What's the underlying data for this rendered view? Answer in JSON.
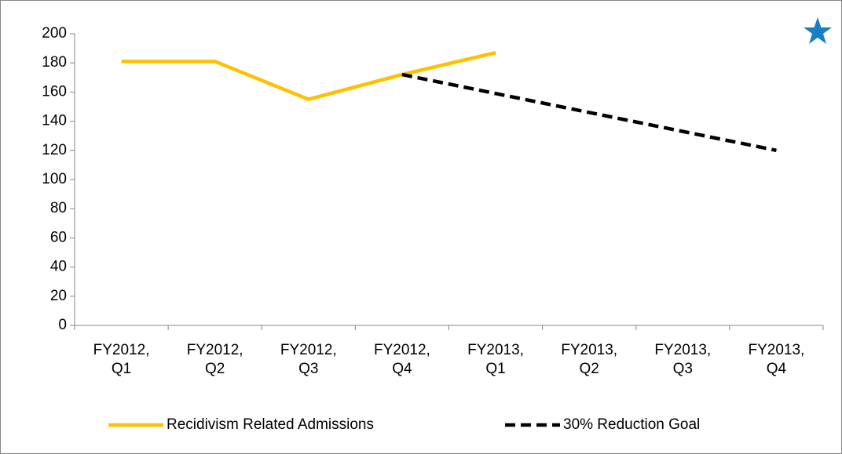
{
  "chart_data": {
    "type": "line",
    "categories": [
      "FY2012, Q1",
      "FY2012, Q2",
      "FY2012, Q3",
      "FY2012, Q4",
      "FY2013, Q1",
      "FY2013, Q2",
      "FY2013, Q3",
      "FY2013, Q4"
    ],
    "series": [
      {
        "name": "Recidivism Related Admissions",
        "color": "#ffc000",
        "dash": false,
        "values": [
          181,
          181,
          155,
          172,
          187,
          null,
          null,
          null
        ]
      },
      {
        "name": "30% Reduction Goal",
        "color": "#000000",
        "dash": true,
        "values": [
          null,
          null,
          null,
          172,
          159,
          146,
          133,
          120
        ]
      }
    ],
    "ylim": [
      0,
      200
    ],
    "yticks": [
      0,
      20,
      40,
      60,
      80,
      100,
      120,
      140,
      160,
      180,
      200
    ]
  }
}
